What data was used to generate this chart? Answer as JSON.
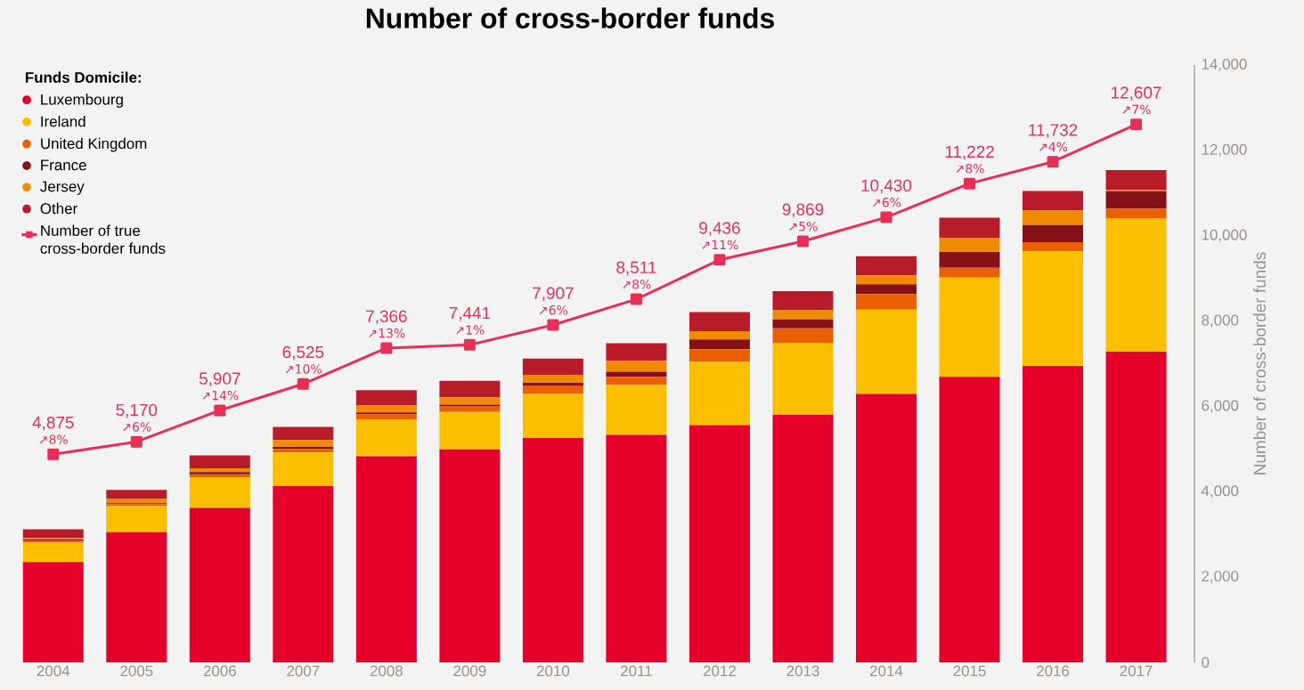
{
  "chart_data": {
    "type": "bar",
    "stacked": true,
    "title": "Number of cross-border funds",
    "ylabel": "Number of cross-border funds",
    "legend_title": "Funds Domicile:",
    "legend": "top left",
    "categories": [
      "2004",
      "2005",
      "2006",
      "2007",
      "2008",
      "2009",
      "2010",
      "2011",
      "2012",
      "2013",
      "2014",
      "2015",
      "2016",
      "2017"
    ],
    "ylim": [
      0,
      14000
    ],
    "yticks": [
      0,
      {
        "value": 2000,
        "label": "2,000"
      },
      {
        "value": 4000,
        "label": "4,000"
      },
      {
        "value": 6000,
        "label": "6,000"
      },
      {
        "value": 8000,
        "label": "8,000"
      },
      {
        "value": 10000,
        "label": "10,000"
      },
      {
        "value": 12000,
        "label": "12,000"
      },
      {
        "value": 14000,
        "label": "14,000"
      }
    ],
    "series": [
      {
        "name": "Luxembourg",
        "color": "#e4002b",
        "values": [
          2350,
          3050,
          3620,
          4130,
          4830,
          4990,
          5260,
          5330,
          5560,
          5800,
          6290,
          6690,
          6950,
          7280
        ]
      },
      {
        "name": "Ireland",
        "color": "#fbbf00",
        "values": [
          460,
          610,
          720,
          790,
          860,
          880,
          1030,
          1170,
          1480,
          1680,
          1980,
          2330,
          2690,
          3120
        ]
      },
      {
        "name": "United Kingdom",
        "color": "#ea6000",
        "values": [
          40,
          50,
          70,
          80,
          120,
          140,
          200,
          190,
          300,
          350,
          360,
          230,
          210,
          230
        ]
      },
      {
        "name": "France",
        "color": "#861018",
        "values": [
          30,
          20,
          50,
          50,
          50,
          30,
          60,
          120,
          230,
          210,
          230,
          370,
          400,
          410
        ]
      },
      {
        "name": "Jersey",
        "color": "#f08a00",
        "values": [
          30,
          100,
          90,
          160,
          160,
          170,
          190,
          260,
          190,
          210,
          210,
          320,
          340,
          40
        ]
      },
      {
        "name": "Other",
        "color": "#b81b2a",
        "values": [
          210,
          210,
          300,
          310,
          360,
          390,
          380,
          410,
          450,
          450,
          450,
          480,
          460,
          460
        ]
      },
      {
        "name": "Number of true cross-border funds",
        "type": "line",
        "marker": "square",
        "color": "#e63057",
        "values": [
          4875,
          5170,
          5907,
          6525,
          7366,
          7441,
          7907,
          8511,
          9436,
          9869,
          10430,
          11222,
          11732,
          12607
        ],
        "value_labels": [
          "4,875",
          "5,170",
          "5,907",
          "6,525",
          "7,366",
          "7,441",
          "7,907",
          "8,511",
          "9,436",
          "9,869",
          "10,430",
          "11,222",
          "11,732",
          "12,607"
        ]
      }
    ],
    "annotations": [
      {
        "text": "↗8%",
        "x": "2004",
        "y": 4875
      },
      {
        "text": "↗6%",
        "x": "2005",
        "y": 5170
      },
      {
        "text": "↗14%",
        "x": "2006",
        "y": 5907
      },
      {
        "text": "↗10%",
        "x": "2007",
        "y": 6525
      },
      {
        "text": "↗13%",
        "x": "2008",
        "y": 7366
      },
      {
        "text": "↗1%",
        "x": "2009",
        "y": 7441
      },
      {
        "text": "↗6%",
        "x": "2010",
        "y": 7907
      },
      {
        "text": "↗8%",
        "x": "2011",
        "y": 8511
      },
      {
        "text": "↗11%",
        "x": "2012",
        "y": 9436
      },
      {
        "text": "↗5%",
        "x": "2013",
        "y": 9869
      },
      {
        "text": "↗6%",
        "x": "2014",
        "y": 10430
      },
      {
        "text": "↗8%",
        "x": "2015",
        "y": 11222
      },
      {
        "text": "↗4%",
        "x": "2016",
        "y": 11732
      },
      {
        "text": "↗7%",
        "x": "2017",
        "y": 12607
      }
    ]
  }
}
